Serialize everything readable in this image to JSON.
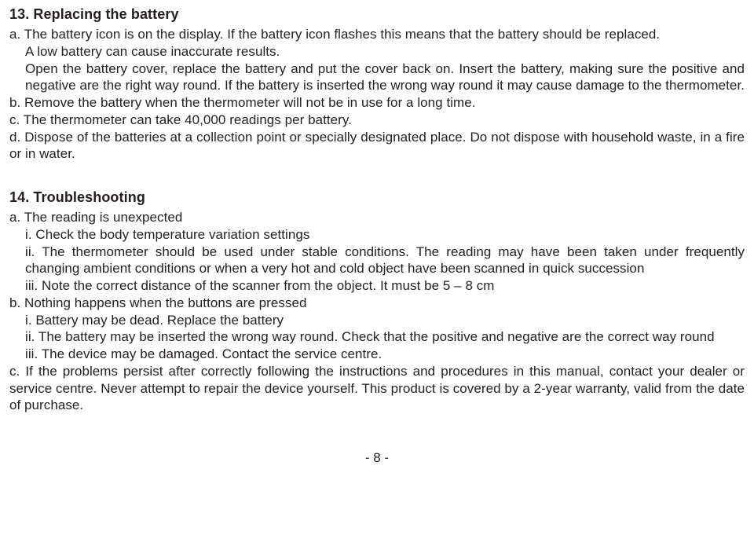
{
  "section13": {
    "heading": "13. Replacing the battery",
    "a1": "a. The battery icon is on the display. If the battery icon flashes this means that the battery should be replaced.",
    "a2": "A low battery can cause inaccurate results.",
    "a3": "Open the battery cover, replace the battery and put the cover back on. Insert the battery, making sure the positive and negative are the right way round. If the battery is inserted the wrong way round it may cause damage to the thermometer.",
    "b": "b. Remove the battery when the thermometer will not be in use for a long time.",
    "c": "c. The thermometer can take 40,000 readings per battery.",
    "d": "d. Dispose of the batteries at a collection point or specially designated place. Do not dispose with household waste, in a fire or in water."
  },
  "section14": {
    "heading": "14. Troubleshooting",
    "a": "a. The reading is unexpected",
    "a_i": "i. Check the body temperature variation settings",
    "a_ii": "ii. The thermometer should be used under stable conditions. The reading may have been taken under frequent­ly changing ambient conditions or when a very hot and cold object have been scanned in quick succession",
    "a_iii": "iii. Note the correct distance of the scanner from the object. It must be 5 – 8 cm",
    "b": "b. Nothing happens when the buttons are pressed",
    "b_i": "i. Battery may be dead. Replace the battery",
    "b_ii": "ii. The battery may be inserted the wrong way round. Check that the positive and negative are the correct way round",
    "b_iii": "iii. The device may be damaged. Contact the service centre.",
    "c": "c. If the problems persist after correctly following the instructions and procedures in this manual, contact your dealer or service centre. Never attempt to repair the device yourself. This product is covered by a 2-year war­ranty, valid from the date of purchase."
  },
  "page_number": "- 8 -"
}
